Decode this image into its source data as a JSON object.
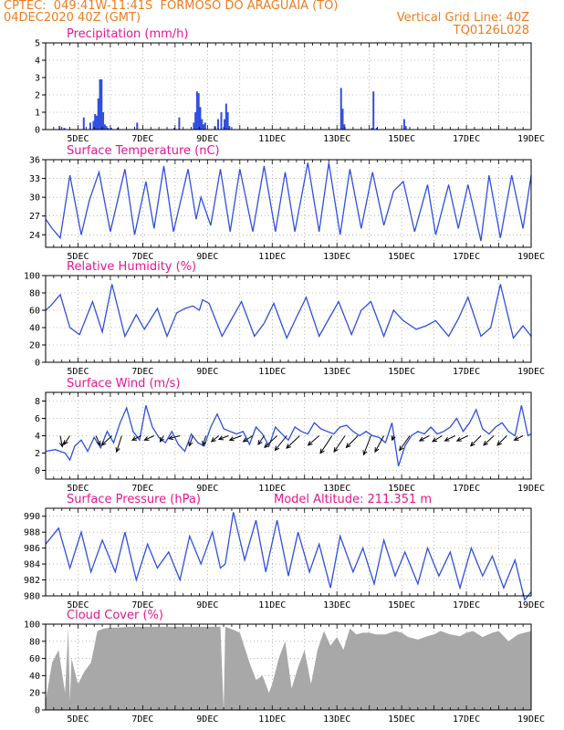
{
  "header": {
    "line1": "CPTEC:  049:41W-11:41S  FORMOSO DO ARAGUAIA (TO)",
    "line2": "04DEC2020 40Z (GMT)",
    "grid_note": "Vertical Grid Line: 40Z",
    "code": "TQ0126L028"
  },
  "colors": {
    "header": "#f07b1f",
    "title": "#e8168e",
    "series": "#2f4fe0",
    "cloud": "#a8a8a8"
  },
  "chart_data": [
    {
      "id": "precip",
      "type": "bar",
      "title": "Precipitation (mm/h)",
      "ylim": [
        0,
        5
      ],
      "yticks": [
        0,
        1,
        2,
        3,
        4,
        5
      ],
      "xticks": [
        "5DEC",
        "7DEC",
        "9DEC",
        "11DEC",
        "13DEC",
        "15DEC",
        "17DEC",
        "19DEC"
      ],
      "x": [
        4.4,
        4.55,
        5.15,
        5.35,
        5.45,
        5.5,
        5.55,
        5.6,
        5.65,
        5.7,
        5.75,
        5.8,
        5.85,
        5.9,
        6.0,
        6.2,
        6.8,
        7.95,
        8.1,
        8.55,
        8.6,
        8.65,
        8.7,
        8.75,
        8.8,
        8.85,
        8.9,
        9.2,
        9.3,
        9.4,
        9.5,
        9.55,
        9.6,
        9.65,
        13.1,
        13.15,
        13.2,
        14.05,
        14.1,
        14.2,
        15.05,
        15.1
      ],
      "values": [
        0.2,
        0.1,
        0.7,
        0.4,
        0.5,
        0.9,
        0.8,
        1.8,
        2.9,
        2.9,
        1.0,
        0.3,
        0.2,
        0.1,
        0.1,
        0.1,
        0.4,
        0.1,
        0.7,
        0.4,
        1.0,
        2.2,
        2.1,
        1.3,
        0.6,
        0.3,
        0.4,
        0.2,
        0.6,
        1.0,
        0.6,
        1.5,
        1.0,
        0.2,
        2.4,
        1.2,
        0.3,
        0.1,
        2.2,
        0.1,
        0.6,
        0.2
      ]
    },
    {
      "id": "temp",
      "type": "line",
      "title": "Surface Temperature (nC)",
      "ylim": [
        22,
        36
      ],
      "yticks": [
        24,
        27,
        30,
        33,
        36
      ],
      "xticks": [
        "5DEC",
        "7DEC",
        "9DEC",
        "11DEC",
        "13DEC",
        "15DEC",
        "17DEC",
        "19DEC"
      ],
      "x": [
        4.0,
        4.2,
        4.45,
        4.75,
        5.1,
        5.35,
        5.65,
        6.0,
        6.45,
        6.75,
        7.1,
        7.35,
        7.65,
        7.95,
        8.4,
        8.65,
        8.8,
        9.1,
        9.4,
        9.7,
        10.0,
        10.4,
        10.75,
        11.1,
        11.4,
        11.7,
        12.1,
        12.45,
        12.75,
        13.1,
        13.4,
        13.75,
        14.1,
        14.45,
        14.75,
        15.05,
        15.4,
        15.8,
        16.05,
        16.45,
        16.75,
        17.05,
        17.45,
        17.7,
        18.05,
        18.4,
        18.75,
        19.0
      ],
      "values": [
        26.5,
        25.0,
        23.5,
        33.5,
        24.0,
        29.5,
        34.0,
        24.5,
        34.5,
        24.0,
        32.5,
        25.0,
        35.0,
        24.5,
        34.5,
        26.5,
        30.0,
        25.5,
        34.5,
        24.5,
        34.5,
        24.5,
        35.0,
        24.5,
        34.0,
        24.5,
        35.5,
        24.5,
        35.5,
        24.0,
        34.5,
        25.0,
        34.0,
        25.5,
        31.0,
        32.5,
        24.5,
        32.0,
        24.0,
        32.0,
        25.0,
        32.0,
        23.0,
        33.5,
        23.5,
        33.5,
        25.0,
        33.5
      ]
    },
    {
      "id": "rh",
      "type": "line",
      "title": "Relative Humidity (%)",
      "ylim": [
        0,
        100
      ],
      "yticks": [
        0,
        20,
        40,
        60,
        80,
        100
      ],
      "xticks": [
        "5DEC",
        "7DEC",
        "9DEC",
        "11DEC",
        "13DEC",
        "15DEC",
        "17DEC",
        "19DEC"
      ],
      "x": [
        4.0,
        4.15,
        4.45,
        4.75,
        5.05,
        5.45,
        5.75,
        6.05,
        6.45,
        6.8,
        7.05,
        7.45,
        7.75,
        8.05,
        8.3,
        8.55,
        8.75,
        8.85,
        9.05,
        9.45,
        9.75,
        10.05,
        10.45,
        10.75,
        11.05,
        11.45,
        11.75,
        12.05,
        12.45,
        12.75,
        13.05,
        13.45,
        13.75,
        14.05,
        14.45,
        14.75,
        15.05,
        15.45,
        15.75,
        16.05,
        16.45,
        16.75,
        17.05,
        17.45,
        17.75,
        18.05,
        18.45,
        18.75,
        19.0
      ],
      "values": [
        60,
        65,
        78,
        40,
        32,
        70,
        35,
        90,
        30,
        55,
        38,
        62,
        30,
        57,
        62,
        65,
        60,
        72,
        68,
        30,
        50,
        70,
        30,
        45,
        68,
        28,
        52,
        75,
        30,
        50,
        70,
        32,
        60,
        70,
        30,
        60,
        48,
        38,
        42,
        48,
        30,
        50,
        75,
        30,
        40,
        90,
        28,
        42,
        30
      ]
    },
    {
      "id": "wind",
      "type": "line",
      "title": "Surface Wind (m/s)",
      "ylim": [
        -1,
        9
      ],
      "yticks": [
        0,
        2,
        4,
        6,
        8
      ],
      "xticks": [
        "5DEC",
        "7DEC",
        "9DEC",
        "11DEC",
        "13DEC",
        "15DEC",
        "17DEC",
        "19DEC"
      ],
      "x": [
        4.0,
        4.3,
        4.6,
        4.75,
        4.9,
        5.1,
        5.3,
        5.5,
        5.7,
        5.9,
        6.1,
        6.3,
        6.5,
        6.7,
        6.9,
        7.1,
        7.3,
        7.5,
        7.7,
        7.9,
        8.1,
        8.3,
        8.5,
        8.7,
        8.9,
        9.1,
        9.3,
        9.5,
        9.7,
        9.9,
        10.1,
        10.3,
        10.5,
        10.7,
        10.9,
        11.1,
        11.3,
        11.5,
        11.7,
        11.9,
        12.1,
        12.3,
        12.5,
        12.7,
        12.9,
        13.1,
        13.3,
        13.5,
        13.7,
        13.9,
        14.1,
        14.3,
        14.5,
        14.7,
        14.9,
        15.1,
        15.3,
        15.5,
        15.7,
        15.9,
        16.1,
        16.3,
        16.5,
        16.7,
        16.9,
        17.1,
        17.3,
        17.5,
        17.7,
        17.9,
        18.1,
        18.3,
        18.5,
        18.7,
        18.9,
        19.0
      ],
      "values": [
        2.2,
        2.4,
        2.0,
        1.2,
        2.8,
        3.5,
        2.2,
        3.8,
        2.6,
        4.5,
        3.2,
        5.5,
        7.2,
        4.5,
        3.5,
        7.5,
        5.0,
        3.8,
        3.2,
        4.5,
        3.0,
        2.2,
        4.2,
        3.2,
        2.8,
        5.0,
        6.5,
        4.8,
        4.5,
        4.2,
        4.5,
        3.0,
        5.0,
        4.2,
        2.8,
        5.0,
        4.2,
        3.5,
        5.0,
        4.5,
        4.2,
        5.5,
        4.8,
        4.5,
        4.2,
        5.0,
        5.2,
        4.5,
        4.0,
        4.5,
        4.0,
        3.8,
        3.2,
        5.5,
        0.5,
        2.8,
        4.0,
        4.5,
        4.2,
        5.0,
        4.2,
        4.5,
        5.0,
        6.0,
        4.5,
        5.5,
        7.0,
        4.8,
        4.2,
        5.0,
        5.5,
        4.5,
        4.0,
        7.5,
        4.0,
        4.2
      ],
      "arrows": [
        {
          "x": 4.45,
          "u": -0.3,
          "v": -1.5
        },
        {
          "x": 4.75,
          "u": 0.8,
          "v": -1.2
        },
        {
          "x": 5.55,
          "u": -0.6,
          "v": -1.3
        },
        {
          "x": 6.05,
          "u": 1.4,
          "v": -1.3
        },
        {
          "x": 6.35,
          "u": 0.7,
          "v": -2.2
        },
        {
          "x": 6.95,
          "u": 1.2,
          "v": -0.6
        },
        {
          "x": 7.35,
          "u": 1.3,
          "v": -0.6
        },
        {
          "x": 7.65,
          "u": 0.5,
          "v": -0.8
        },
        {
          "x": 8.15,
          "u": 1.5,
          "v": -0.4
        },
        {
          "x": 8.55,
          "u": 0.5,
          "v": -1.4
        },
        {
          "x": 8.95,
          "u": 0.4,
          "v": -1.3
        },
        {
          "x": 9.35,
          "u": 1.0,
          "v": -0.8
        },
        {
          "x": 9.65,
          "u": 1.3,
          "v": -0.5
        },
        {
          "x": 10.05,
          "u": 1.6,
          "v": -0.6
        },
        {
          "x": 10.4,
          "u": 1.3,
          "v": -0.8
        },
        {
          "x": 10.75,
          "u": 0.8,
          "v": -1.2
        },
        {
          "x": 11.15,
          "u": 1.7,
          "v": -1.6
        },
        {
          "x": 11.45,
          "u": 1.6,
          "v": -2.0
        },
        {
          "x": 11.85,
          "u": 1.8,
          "v": -1.7
        },
        {
          "x": 12.45,
          "u": 1.5,
          "v": -1.3
        },
        {
          "x": 12.85,
          "u": 1.6,
          "v": -2.4
        },
        {
          "x": 13.25,
          "u": 1.5,
          "v": -2.2
        },
        {
          "x": 13.65,
          "u": 1.6,
          "v": -1.6
        },
        {
          "x": 14.05,
          "u": 1.0,
          "v": -2.6
        },
        {
          "x": 14.45,
          "u": 1.2,
          "v": -2.2
        },
        {
          "x": 14.75,
          "u": 0.2,
          "v": -0.6
        },
        {
          "x": 15.25,
          "u": 1.4,
          "v": -2.0
        },
        {
          "x": 15.85,
          "u": 1.3,
          "v": -0.7
        },
        {
          "x": 16.25,
          "u": 1.3,
          "v": -0.8
        },
        {
          "x": 16.65,
          "u": 1.4,
          "v": -0.7
        },
        {
          "x": 17.05,
          "u": 1.5,
          "v": -0.7
        },
        {
          "x": 17.45,
          "u": 1.4,
          "v": -1.4
        },
        {
          "x": 17.85,
          "u": 1.4,
          "v": -1.3
        },
        {
          "x": 18.25,
          "u": 1.3,
          "v": -1.3
        },
        {
          "x": 18.75,
          "u": 1.2,
          "v": -0.6
        }
      ]
    },
    {
      "id": "press",
      "type": "line",
      "title": "Surface Pressure (hPa)",
      "annotation": "Model Altitude: 211.351 m",
      "ylim": [
        980,
        991
      ],
      "yticks": [
        980,
        982,
        984,
        986,
        988,
        990
      ],
      "xticks": [
        "5DEC",
        "7DEC",
        "9DEC",
        "11DEC",
        "13DEC",
        "15DEC",
        "17DEC",
        "19DEC"
      ],
      "x": [
        4.0,
        4.4,
        4.75,
        5.1,
        5.4,
        5.75,
        6.15,
        6.45,
        6.8,
        7.15,
        7.45,
        7.8,
        8.15,
        8.45,
        8.8,
        9.15,
        9.4,
        9.55,
        9.8,
        10.15,
        10.5,
        10.8,
        11.15,
        11.5,
        11.8,
        12.15,
        12.45,
        12.8,
        13.1,
        13.5,
        13.8,
        14.15,
        14.45,
        14.8,
        15.1,
        15.5,
        15.8,
        16.15,
        16.5,
        16.8,
        17.15,
        17.5,
        17.8,
        18.15,
        18.5,
        18.8,
        19.0
      ],
      "values": [
        986.5,
        988.5,
        983.5,
        988.0,
        983.0,
        987.0,
        983.0,
        988.0,
        982.0,
        986.5,
        983.5,
        985.5,
        982.0,
        987.5,
        984.0,
        988.0,
        983.5,
        984.0,
        990.5,
        984.5,
        989.5,
        983.0,
        989.5,
        982.5,
        988.0,
        983.0,
        986.5,
        981.0,
        987.5,
        983.0,
        986.0,
        981.5,
        987.0,
        982.5,
        985.5,
        981.5,
        986.0,
        982.5,
        985.5,
        981.0,
        986.0,
        982.5,
        985.0,
        981.0,
        984.5,
        979.5,
        980.5
      ]
    },
    {
      "id": "cloud",
      "type": "area",
      "title": "Cloud Cover (%)",
      "ylim": [
        0,
        100
      ],
      "yticks": [
        0,
        20,
        40,
        60,
        80,
        100
      ],
      "xticks": [
        "5DEC",
        "7DEC",
        "9DEC",
        "11DEC",
        "13DEC",
        "15DEC",
        "17DEC",
        "19DEC"
      ],
      "x": [
        4.0,
        4.2,
        4.4,
        4.6,
        4.7,
        4.75,
        4.8,
        5.0,
        5.2,
        5.4,
        5.6,
        5.8,
        6.0,
        6.2,
        6.6,
        7.0,
        7.5,
        8.0,
        8.5,
        9.0,
        9.4,
        9.5,
        9.55,
        9.7,
        10.0,
        10.3,
        10.5,
        10.7,
        10.9,
        11.0,
        11.2,
        11.4,
        11.6,
        11.8,
        12.0,
        12.2,
        12.4,
        12.6,
        12.8,
        13.0,
        13.2,
        13.4,
        13.6,
        13.8,
        14.0,
        14.2,
        14.5,
        14.8,
        15.0,
        15.2,
        15.5,
        15.8,
        16.0,
        16.2,
        16.5,
        16.8,
        17.0,
        17.2,
        17.5,
        17.8,
        18.0,
        18.3,
        18.6,
        18.8,
        19.0
      ],
      "values": [
        10,
        55,
        70,
        20,
        96,
        10,
        60,
        30,
        45,
        55,
        92,
        95,
        96,
        96,
        97,
        97,
        97,
        97,
        97,
        97,
        97,
        0,
        97,
        95,
        90,
        55,
        35,
        40,
        20,
        30,
        60,
        80,
        25,
        50,
        70,
        30,
        70,
        92,
        75,
        85,
        70,
        95,
        88,
        90,
        90,
        88,
        88,
        92,
        90,
        85,
        82,
        86,
        88,
        92,
        88,
        86,
        90,
        92,
        85,
        90,
        92,
        80,
        88,
        90,
        92
      ]
    }
  ]
}
